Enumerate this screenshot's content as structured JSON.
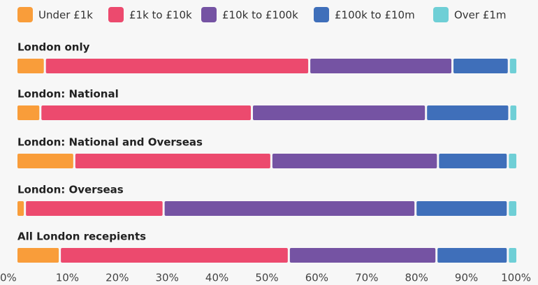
{
  "chart_data": {
    "type": "stacked-bar-horizontal",
    "categories": [
      "London only",
      "London: National",
      "London: National and Overseas",
      "London: Overseas",
      "All London recepients"
    ],
    "series": [
      {
        "name": "Under £1k",
        "color": "#f99d3a",
        "values": [
          5.7,
          4.8,
          11.6,
          1.7,
          8.7
        ]
      },
      {
        "name": "£1k to £10k",
        "color": "#ec4a6e",
        "values": [
          53,
          42.4,
          39.5,
          27.8,
          45.9
        ]
      },
      {
        "name": "£10k to £100k",
        "color": "#7553a3",
        "values": [
          28.7,
          34.9,
          33.4,
          50.5,
          29.6
        ]
      },
      {
        "name": "£100k to £10m",
        "color": "#3f6fba",
        "values": [
          11.3,
          16.7,
          14,
          18.5,
          14.3
        ]
      },
      {
        "name": "Over £1m",
        "color": "#6fcfd6",
        "values": [
          1.3,
          1.2,
          1.5,
          1.5,
          1.5
        ]
      }
    ],
    "xlim": [
      0,
      100
    ],
    "xticks": [
      {
        "value": 0,
        "label": "0%"
      },
      {
        "value": 10,
        "label": "10%"
      },
      {
        "value": 20,
        "label": "20%"
      },
      {
        "value": 30,
        "label": "30%"
      },
      {
        "value": 40,
        "label": "40%"
      },
      {
        "value": 50,
        "label": "50%"
      },
      {
        "value": 60,
        "label": "60%"
      },
      {
        "value": 70,
        "label": "70%"
      },
      {
        "value": 80,
        "label": "80%"
      },
      {
        "value": 90,
        "label": "90%"
      },
      {
        "value": 100,
        "label": "100%"
      }
    ],
    "legend": "top",
    "grid": false
  }
}
